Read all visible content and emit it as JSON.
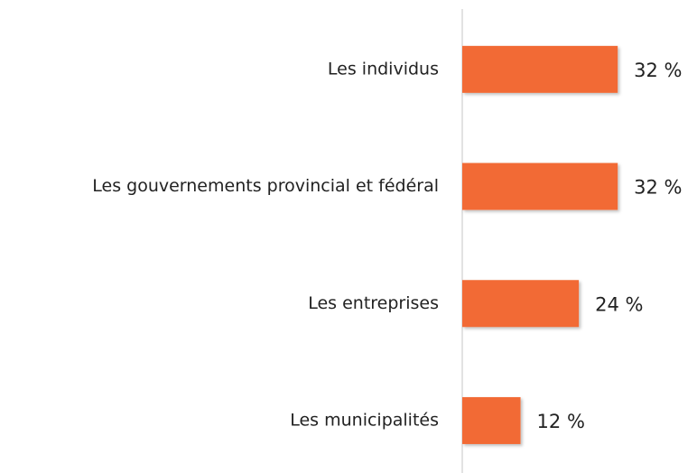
{
  "chart_data": {
    "type": "hbar",
    "categories": [
      "Les individus",
      "Les gouvernements provincial et fédéral",
      "Les entreprises",
      "Les municipalités"
    ],
    "values": [
      32,
      32,
      24,
      12
    ],
    "value_labels": [
      "32 %",
      "32 %",
      "24 %",
      "12 %"
    ],
    "color": "#f26a35"
  }
}
